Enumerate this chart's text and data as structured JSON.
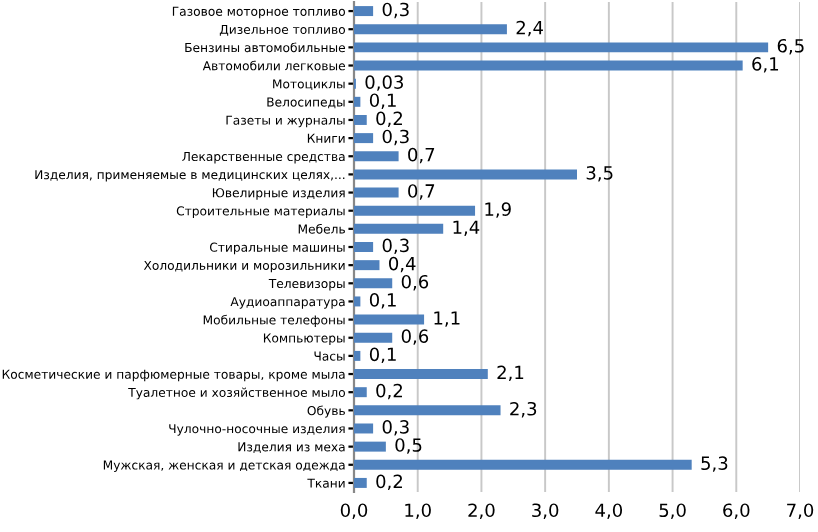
{
  "chart_data": {
    "type": "bar",
    "orientation": "horizontal",
    "color": "#4f81bd",
    "categories": [
      "Газовое моторное топливо",
      "Дизельное топливо",
      "Бензины автомобильные",
      "Автомобили легковые",
      "Мотоциклы",
      "Велосипеды",
      "Газеты и журналы",
      "Книги",
      "Лекарственные средства",
      "Изделия, применяемые в медицинских целях,...",
      "Ювелирные изделия",
      "Строительные материалы",
      "Мебель",
      "Стиральные машины",
      "Холодильники и морозильники",
      "Телевизоры",
      "Аудиоаппаратура",
      "Мобильные телефоны",
      "Компьютеры",
      "Часы",
      "Косметические и парфюмерные товары, кроме мыла",
      "Туалетное и хозяйственное мыло",
      "Обувь",
      "Чулочно-носочные изделия",
      "Изделия из меха",
      "Мужская, женская и детская одежда",
      "Ткани"
    ],
    "values": [
      0.3,
      2.4,
      6.5,
      6.1,
      0.03,
      0.1,
      0.2,
      0.3,
      0.7,
      3.5,
      0.7,
      1.9,
      1.4,
      0.3,
      0.4,
      0.6,
      0.1,
      1.1,
      0.6,
      0.1,
      2.1,
      0.2,
      2.3,
      0.3,
      0.5,
      5.3,
      0.2
    ],
    "value_labels": [
      "0,3",
      "2,4",
      "6,5",
      "6,1",
      "0,03",
      "0,1",
      "0,2",
      "0,3",
      "0,7",
      "3,5",
      "0,7",
      "1,9",
      "1,4",
      "0,3",
      "0,4",
      "0,6",
      "0,1",
      "1,1",
      "0,6",
      "0,1",
      "2,1",
      "0,2",
      "2,3",
      "0,3",
      "0,5",
      "5,3",
      "0,2"
    ],
    "xlim": [
      0,
      7
    ],
    "xticks": [
      {
        "value": 0,
        "label": "0,0"
      },
      {
        "value": 1,
        "label": "1,0"
      },
      {
        "value": 2,
        "label": "2,0"
      },
      {
        "value": 3,
        "label": "3,0"
      },
      {
        "value": 4,
        "label": "4,0"
      },
      {
        "value": 5,
        "label": "5,0"
      },
      {
        "value": 6,
        "label": "6,0"
      },
      {
        "value": 7,
        "label": "7,0"
      }
    ],
    "grid": "x"
  }
}
